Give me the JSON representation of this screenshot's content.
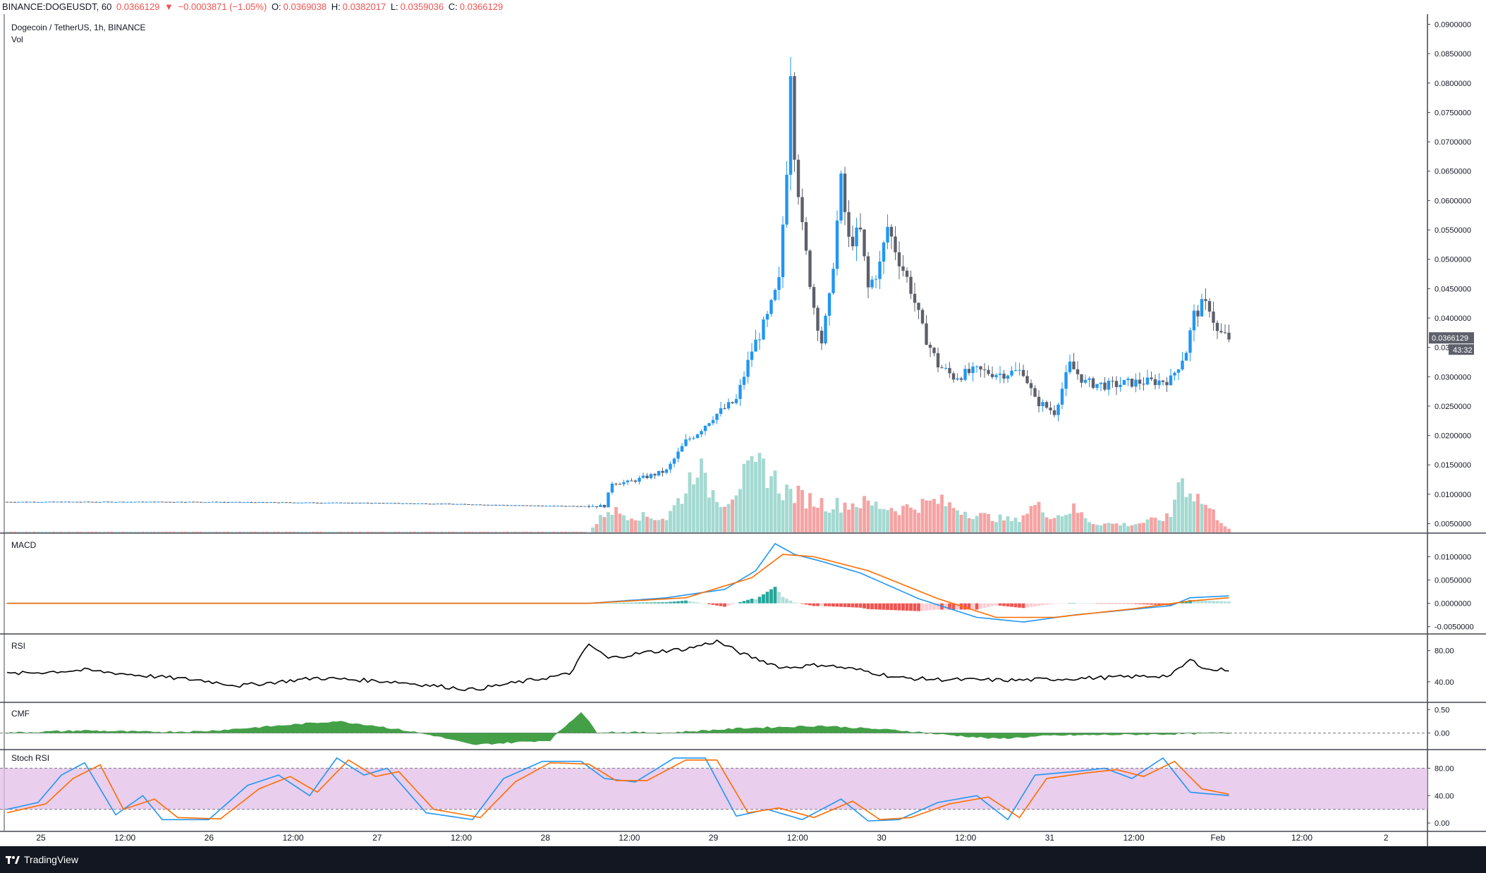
{
  "header": {
    "symbol": "BINANCE:DOGEUSDT, 60",
    "price": "0.0366129",
    "change": "−0.0003871 (−1.05%)",
    "o_label": "O:",
    "o_value": "0.0369038",
    "h_label": "H:",
    "h_value": "0.0382017",
    "l_label": "L:",
    "l_value": "0.0359036",
    "c_label": "C:",
    "c_value": "0.0366129"
  },
  "panes": {
    "main_title": "Dogecoin / TetherUS, 1h, BINANCE",
    "vol_title": "Vol",
    "macd_title": "MACD",
    "rsi_title": "RSI",
    "cmf_title": "CMF",
    "stoch_title": "Stoch RSI"
  },
  "price_tag": {
    "value": "0.0366129",
    "countdown": "43:32"
  },
  "footer": {
    "brand": "TradingView"
  },
  "colors": {
    "up": "#2196f3",
    "down": "#5d606b",
    "vol_up": "#a3d9d1",
    "vol_down": "#f5a3a3",
    "macd_line": "#2196f3",
    "signal_line": "#ff6d00",
    "hist_up_strong": "#26a69a",
    "hist_up_weak": "#b2dfdb",
    "hist_down_strong": "#ef5350",
    "hist_down_weak": "#ffcdd2",
    "rsi_line": "#000000",
    "cmf_fill": "#43a047",
    "stoch_k": "#2196f3",
    "stoch_d": "#ff6d00",
    "stoch_band": "#e1bee7"
  },
  "chart_data": {
    "type": "candlestick",
    "symbol": "BINANCE:DOGEUSDT",
    "interval": "1h",
    "x_ticks": [
      "25",
      "12:00",
      "26",
      "12:00",
      "27",
      "12:00",
      "28",
      "12:00",
      "29",
      "12:00",
      "30",
      "12:00",
      "31",
      "12:00",
      "Feb",
      "12:00",
      "2"
    ],
    "price_axis": {
      "ticks": [
        "0.0900000",
        "0.0850000",
        "0.0800000",
        "0.0750000",
        "0.0700000",
        "0.0650000",
        "0.0600000",
        "0.0550000",
        "0.0500000",
        "0.0450000",
        "0.0400000",
        "0.0350000",
        "0.0300000",
        "0.0250000",
        "0.0200000",
        "0.0150000",
        "0.0100000",
        "0.0050000"
      ],
      "range": [
        0.0035,
        0.0915
      ]
    },
    "close_keypoints": [
      [
        0,
        0.0087
      ],
      [
        48,
        0.0087
      ],
      [
        96,
        0.0085
      ],
      [
        110,
        0.0084
      ],
      [
        125,
        0.0082
      ],
      [
        140,
        0.008
      ],
      [
        154,
        0.008
      ],
      [
        156,
        0.012
      ],
      [
        160,
        0.012
      ],
      [
        165,
        0.013
      ],
      [
        170,
        0.014
      ],
      [
        175,
        0.019
      ],
      [
        178,
        0.0205
      ],
      [
        182,
        0.0232
      ],
      [
        188,
        0.026
      ],
      [
        192,
        0.0345
      ],
      [
        196,
        0.04
      ],
      [
        199,
        0.046
      ],
      [
        201,
        0.066
      ],
      [
        202,
        0.083
      ],
      [
        203,
        0.069
      ],
      [
        205,
        0.055
      ],
      [
        208,
        0.042
      ],
      [
        210,
        0.036
      ],
      [
        212,
        0.043
      ],
      [
        215,
        0.063
      ],
      [
        217,
        0.053
      ],
      [
        220,
        0.0545
      ],
      [
        222,
        0.045
      ],
      [
        225,
        0.049
      ],
      [
        227,
        0.0555
      ],
      [
        230,
        0.05
      ],
      [
        233,
        0.045
      ],
      [
        236,
        0.038
      ],
      [
        240,
        0.032
      ],
      [
        244,
        0.03
      ],
      [
        250,
        0.031
      ],
      [
        256,
        0.0305
      ],
      [
        262,
        0.031
      ],
      [
        265,
        0.026
      ],
      [
        270,
        0.024
      ],
      [
        274,
        0.032
      ],
      [
        278,
        0.029
      ],
      [
        284,
        0.0285
      ],
      [
        290,
        0.029
      ],
      [
        296,
        0.0292
      ],
      [
        300,
        0.0295
      ],
      [
        304,
        0.0345
      ],
      [
        306,
        0.0405
      ],
      [
        308,
        0.042
      ],
      [
        310,
        0.042
      ],
      [
        312,
        0.0375
      ],
      [
        315,
        0.0366
      ]
    ],
    "volume_keypoints": [
      [
        0,
        0.0
      ],
      [
        150,
        0.0
      ],
      [
        155,
        0.3
      ],
      [
        160,
        0.22
      ],
      [
        170,
        0.18
      ],
      [
        175,
        0.55
      ],
      [
        178,
        0.95
      ],
      [
        180,
        0.6
      ],
      [
        185,
        0.4
      ],
      [
        190,
        0.7
      ],
      [
        195,
        0.85
      ],
      [
        200,
        0.55
      ],
      [
        205,
        0.45
      ],
      [
        212,
        0.35
      ],
      [
        220,
        0.38
      ],
      [
        230,
        0.3
      ],
      [
        240,
        0.4
      ],
      [
        250,
        0.22
      ],
      [
        260,
        0.15
      ],
      [
        265,
        0.35
      ],
      [
        270,
        0.2
      ],
      [
        275,
        0.3
      ],
      [
        280,
        0.12
      ],
      [
        290,
        0.1
      ],
      [
        295,
        0.15
      ],
      [
        300,
        0.2
      ],
      [
        302,
        0.7
      ],
      [
        305,
        0.55
      ],
      [
        310,
        0.3
      ],
      [
        315,
        0.05
      ]
    ],
    "macd": {
      "axis_ticks": [
        "0.0100000",
        "0.0050000",
        "0.0000000",
        "-0.0050000"
      ],
      "range": [
        -0.0055,
        0.014
      ],
      "macd_keypoints": [
        [
          0,
          0.0
        ],
        [
          150,
          0.0
        ],
        [
          170,
          0.0012
        ],
        [
          185,
          0.003
        ],
        [
          193,
          0.007
        ],
        [
          198,
          0.0128
        ],
        [
          203,
          0.0105
        ],
        [
          210,
          0.009
        ],
        [
          220,
          0.0065
        ],
        [
          235,
          0.001
        ],
        [
          250,
          -0.003
        ],
        [
          262,
          -0.004
        ],
        [
          275,
          -0.0025
        ],
        [
          300,
          -0.0005
        ],
        [
          305,
          0.0012
        ],
        [
          315,
          0.0016
        ]
      ],
      "signal_keypoints": [
        [
          0,
          0.0
        ],
        [
          150,
          0.0
        ],
        [
          175,
          0.0012
        ],
        [
          192,
          0.0055
        ],
        [
          200,
          0.0105
        ],
        [
          208,
          0.01
        ],
        [
          222,
          0.007
        ],
        [
          240,
          0.001
        ],
        [
          255,
          -0.003
        ],
        [
          270,
          -0.003
        ],
        [
          290,
          -0.0012
        ],
        [
          305,
          0.0005
        ],
        [
          315,
          0.0012
        ]
      ]
    },
    "rsi": {
      "axis_ticks": [
        "80.00",
        "40.00"
      ],
      "range": [
        20,
        95
      ],
      "keypoints": [
        [
          0,
          50
        ],
        [
          20,
          55
        ],
        [
          35,
          48
        ],
        [
          50,
          42
        ],
        [
          60,
          35
        ],
        [
          80,
          45
        ],
        [
          100,
          40
        ],
        [
          120,
          30
        ],
        [
          130,
          38
        ],
        [
          145,
          50
        ],
        [
          150,
          88
        ],
        [
          155,
          70
        ],
        [
          165,
          78
        ],
        [
          175,
          82
        ],
        [
          183,
          92
        ],
        [
          190,
          75
        ],
        [
          200,
          58
        ],
        [
          210,
          62
        ],
        [
          220,
          55
        ],
        [
          230,
          45
        ],
        [
          240,
          43
        ],
        [
          260,
          42
        ],
        [
          280,
          45
        ],
        [
          300,
          48
        ],
        [
          305,
          68
        ],
        [
          310,
          55
        ],
        [
          315,
          56
        ]
      ]
    },
    "cmf": {
      "axis_ticks": [
        "0.50",
        "0.00"
      ],
      "range": [
        -0.25,
        0.55
      ],
      "keypoints": [
        [
          0,
          0.0
        ],
        [
          20,
          0.05
        ],
        [
          35,
          0.02
        ],
        [
          50,
          0.03
        ],
        [
          70,
          0.15
        ],
        [
          85,
          0.25
        ],
        [
          95,
          0.15
        ],
        [
          110,
          -0.05
        ],
        [
          120,
          -0.25
        ],
        [
          140,
          -0.15
        ],
        [
          148,
          0.45
        ],
        [
          152,
          0.02
        ],
        [
          170,
          0.0
        ],
        [
          190,
          0.1
        ],
        [
          210,
          0.15
        ],
        [
          230,
          0.05
        ],
        [
          240,
          -0.02
        ],
        [
          255,
          -0.12
        ],
        [
          270,
          -0.05
        ],
        [
          300,
          -0.02
        ],
        [
          315,
          0.0
        ]
      ]
    },
    "stoch_rsi": {
      "axis_ticks": [
        "80.00",
        "40.00",
        "0.00"
      ],
      "bands": [
        20,
        80
      ],
      "range": [
        -5,
        100
      ],
      "k_keypoints": [
        [
          0,
          20
        ],
        [
          8,
          30
        ],
        [
          14,
          70
        ],
        [
          20,
          88
        ],
        [
          28,
          12
        ],
        [
          35,
          40
        ],
        [
          40,
          5
        ],
        [
          52,
          5
        ],
        [
          62,
          55
        ],
        [
          70,
          70
        ],
        [
          78,
          40
        ],
        [
          85,
          95
        ],
        [
          92,
          70
        ],
        [
          98,
          80
        ],
        [
          108,
          15
        ],
        [
          120,
          5
        ],
        [
          128,
          65
        ],
        [
          138,
          90
        ],
        [
          148,
          90
        ],
        [
          154,
          65
        ],
        [
          162,
          60
        ],
        [
          172,
          95
        ],
        [
          180,
          95
        ],
        [
          188,
          10
        ],
        [
          196,
          20
        ],
        [
          205,
          5
        ],
        [
          215,
          35
        ],
        [
          222,
          3
        ],
        [
          230,
          5
        ],
        [
          240,
          30
        ],
        [
          250,
          40
        ],
        [
          258,
          5
        ],
        [
          265,
          70
        ],
        [
          275,
          75
        ],
        [
          283,
          80
        ],
        [
          290,
          65
        ],
        [
          298,
          95
        ],
        [
          305,
          45
        ],
        [
          315,
          40
        ]
      ],
      "d_keypoints": [
        [
          0,
          15
        ],
        [
          10,
          28
        ],
        [
          17,
          65
        ],
        [
          24,
          85
        ],
        [
          30,
          20
        ],
        [
          38,
          35
        ],
        [
          44,
          8
        ],
        [
          55,
          6
        ],
        [
          65,
          50
        ],
        [
          73,
          68
        ],
        [
          80,
          45
        ],
        [
          88,
          92
        ],
        [
          95,
          68
        ],
        [
          101,
          75
        ],
        [
          110,
          20
        ],
        [
          122,
          8
        ],
        [
          131,
          60
        ],
        [
          140,
          88
        ],
        [
          150,
          86
        ],
        [
          157,
          62
        ],
        [
          165,
          62
        ],
        [
          175,
          92
        ],
        [
          183,
          92
        ],
        [
          191,
          15
        ],
        [
          199,
          22
        ],
        [
          208,
          8
        ],
        [
          218,
          32
        ],
        [
          225,
          5
        ],
        [
          233,
          8
        ],
        [
          243,
          28
        ],
        [
          253,
          38
        ],
        [
          261,
          8
        ],
        [
          268,
          65
        ],
        [
          278,
          73
        ],
        [
          286,
          78
        ],
        [
          293,
          68
        ],
        [
          301,
          90
        ],
        [
          308,
          50
        ],
        [
          315,
          42
        ]
      ]
    }
  }
}
